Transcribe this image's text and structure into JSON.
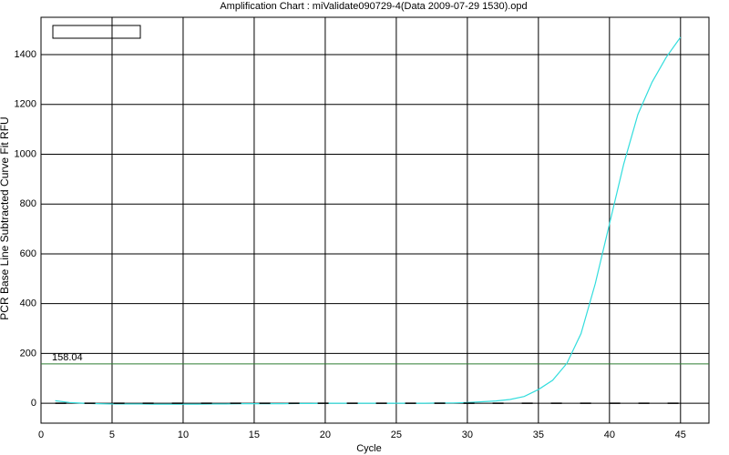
{
  "chart_data": {
    "type": "line",
    "title": "Amplification Chart : miValidate090729-4(Data 2009-07-29 1530).opd",
    "x_label": "Cycle",
    "y_label": "PCR Base Line Subtracted Curve Fit RFU",
    "x": [
      1,
      2,
      3,
      4,
      5,
      6,
      7,
      8,
      9,
      10,
      11,
      12,
      13,
      14,
      15,
      16,
      17,
      18,
      19,
      20,
      21,
      22,
      23,
      24,
      25,
      26,
      27,
      28,
      29,
      30,
      31,
      32,
      33,
      34,
      35,
      36,
      37,
      38,
      39,
      40,
      41,
      42,
      43,
      44,
      45
    ],
    "series": [
      {
        "color": "#33dddd",
        "values": [
          10,
          3,
          0,
          -2,
          -3,
          -3,
          -3,
          -4,
          -4,
          -4,
          -4,
          -3,
          -3,
          -2,
          -2,
          -2,
          -2,
          -1,
          -1,
          0,
          0,
          0,
          0,
          0,
          0,
          0,
          0,
          1,
          1,
          3,
          6,
          9,
          15,
          27,
          55,
          92,
          160,
          280,
          480,
          720,
          960,
          1160,
          1290,
          1390,
          1470
        ]
      },
      {
        "color": "#000000",
        "dashed": true,
        "values": [
          0,
          0,
          0,
          0,
          0,
          0,
          0,
          0,
          0,
          0,
          0,
          0,
          0,
          0,
          0,
          0,
          0,
          0,
          0,
          0,
          0,
          0,
          0,
          0,
          0,
          0,
          0,
          0,
          0,
          0,
          0,
          0,
          0,
          0,
          0,
          0,
          0,
          0,
          0,
          0,
          0,
          0,
          0,
          0,
          0
        ]
      }
    ],
    "threshold": 158.04,
    "threshold_color": "#2e7d32",
    "xlim": [
      0,
      47
    ],
    "xticks": [
      0,
      5,
      10,
      15,
      20,
      25,
      30,
      35,
      40,
      45
    ],
    "ylim": [
      -80,
      1550
    ],
    "yticks": [
      0,
      200,
      400,
      600,
      800,
      1000,
      1200,
      1400
    ],
    "grid": true
  }
}
